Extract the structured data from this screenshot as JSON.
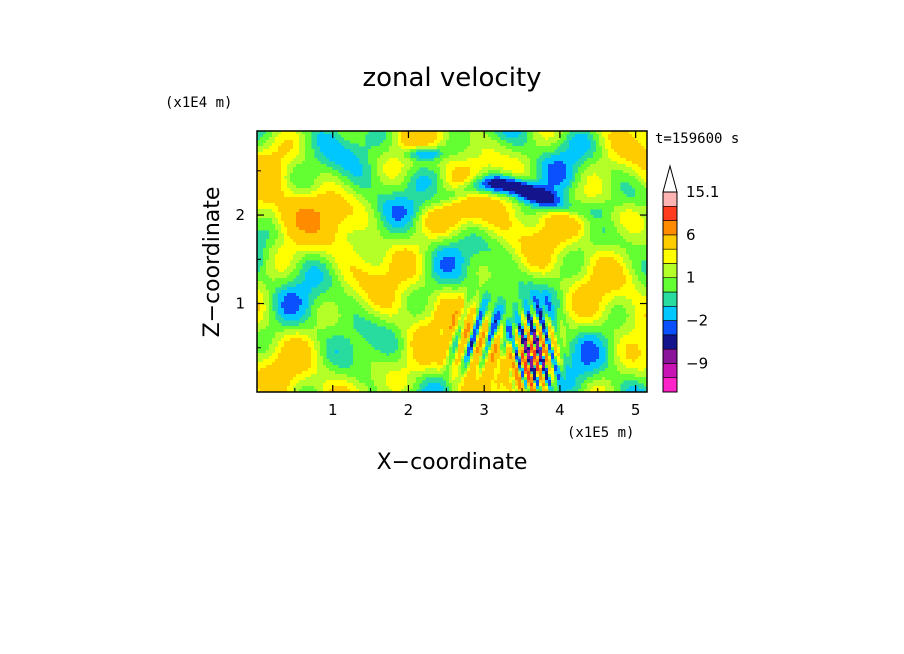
{
  "chart_data": {
    "type": "heatmap",
    "title": "zonal velocity",
    "xlabel": "X−coordinate",
    "ylabel": "Z−coordinate",
    "x_unit": "(x1E5 m)",
    "y_unit": "(x1E4 m)",
    "time_label": "t=159600 s",
    "xlim": [
      0,
      5.15
    ],
    "ylim": [
      0,
      2.95
    ],
    "x_ticks": [
      1,
      2,
      3,
      4,
      5
    ],
    "y_ticks": [
      1,
      2
    ],
    "colorbar": {
      "levels": [
        -15,
        -12,
        -9,
        -6,
        -3,
        -2,
        -1,
        0,
        1,
        2,
        3,
        6,
        9,
        12,
        15.1
      ],
      "labels": [
        "15.1",
        "6",
        "1",
        "−2",
        "−9"
      ],
      "label_values": [
        15.1,
        6,
        1,
        -2,
        -9
      ],
      "colors": [
        "#ff22c8",
        "#c814b4",
        "#8a149a",
        "#14148c",
        "#0a50ff",
        "#00c8ff",
        "#28dca0",
        "#64ff32",
        "#b4ff28",
        "#ffff00",
        "#ffcc00",
        "#ff8c00",
        "#ff3c1e",
        "#ffb4b4",
        "#ffffff"
      ],
      "extend": "max"
    },
    "values_description": "mostly between -3 and 6 m/s; strong negative jets near z=2.0-2.5 and near x=3.5-3.8, z<1"
  }
}
